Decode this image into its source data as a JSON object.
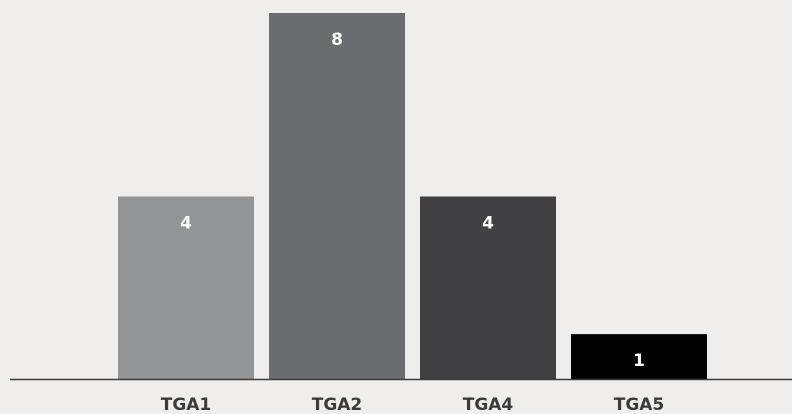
{
  "chart_data": {
    "type": "bar",
    "categories": [
      "TGA1",
      "TGA2",
      "TGA4",
      "TGA5"
    ],
    "values": [
      4,
      8,
      4,
      1
    ],
    "colors": [
      "#939496",
      "#6b6c70",
      "#414143",
      "#000000"
    ],
    "data_labels": [
      "4",
      "8",
      "4",
      "1"
    ],
    "title": "",
    "xlabel": "",
    "ylabel": "",
    "ylim": [
      0,
      8
    ],
    "grid": false,
    "legend": "none"
  }
}
